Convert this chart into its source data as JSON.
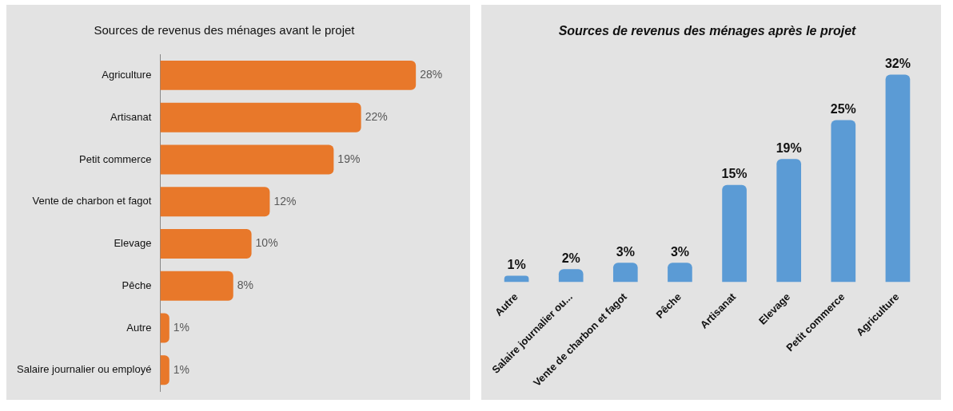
{
  "chart_data": [
    {
      "type": "bar",
      "orientation": "horizontal",
      "title": "Sources de revenus des ménages avant le projet",
      "categories": [
        "Agriculture",
        "Artisanat",
        "Petit commerce",
        "Vente de charbon et fagot",
        "Elevage",
        "Pêche",
        "Autre",
        "Salaire journalier ou employé"
      ],
      "values": [
        28,
        22,
        19,
        12,
        10,
        8,
        1,
        1
      ],
      "color": "#e8782a",
      "value_labels": [
        "28%",
        "22%",
        "19%",
        "12%",
        "10%",
        "8%",
        "1%",
        "1%"
      ]
    },
    {
      "type": "bar",
      "title": "Sources de revenus des ménages après le projet",
      "categories": [
        "Autre",
        "Salaire journalier ou...",
        "Vente de charbon et fagot",
        "Pêche",
        "Artisanat",
        "Elevage",
        "Petit commerce",
        "Agriculture"
      ],
      "values": [
        1,
        2,
        3,
        3,
        15,
        19,
        25,
        32
      ],
      "color": "#5b9bd5",
      "value_labels": [
        "1%",
        "2%",
        "3%",
        "3%",
        "15%",
        "19%",
        "25%",
        "32%"
      ]
    }
  ]
}
